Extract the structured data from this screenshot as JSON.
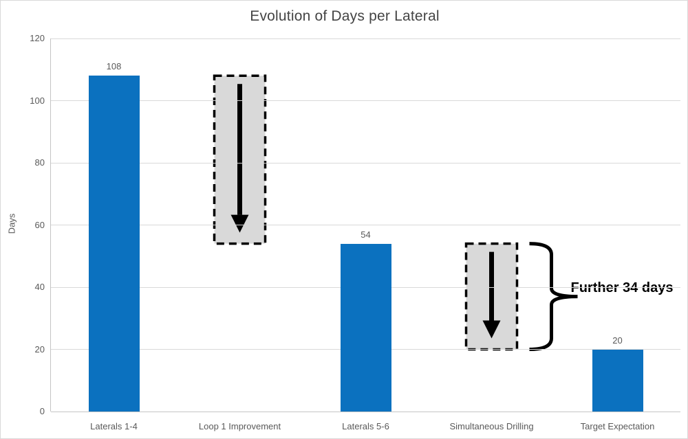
{
  "canvas": {
    "background": "#ffffff",
    "border_color": "#d9d9d9"
  },
  "chart_data": {
    "type": "bar",
    "title": "Evolution of Days per Lateral",
    "xlabel": "",
    "ylabel": "Days",
    "ylim": [
      0,
      120
    ],
    "yticks": [
      0,
      20,
      40,
      60,
      80,
      100,
      120
    ],
    "grid": "horizontal",
    "legend": "none",
    "categories": [
      "Laterals 1-4",
      "Loop 1 Improvement",
      "Laterals 5-6",
      "Simultaneous Drilling",
      "Target Expectation"
    ],
    "values": [
      108,
      null,
      54,
      null,
      20
    ],
    "data_labels": [
      "108",
      null,
      "54",
      null,
      "20"
    ],
    "colors": {
      "bar": "#0b71bf",
      "grid": "#d9d9d9",
      "axis": "#c4c4c4",
      "tick_label": "#595959",
      "data_label": "#595959",
      "title": "#444444",
      "annotation_box_fill": "#d9d9d9",
      "annotation": "#000000"
    },
    "annotations": {
      "drop_boxes": [
        {
          "category_index": 1,
          "from": 108,
          "to": 54
        },
        {
          "category_index": 3,
          "from": 54,
          "to": 20
        }
      ],
      "brace": {
        "category_index": 3,
        "from": 54,
        "to": 20,
        "label": "Further 34 days"
      }
    }
  }
}
